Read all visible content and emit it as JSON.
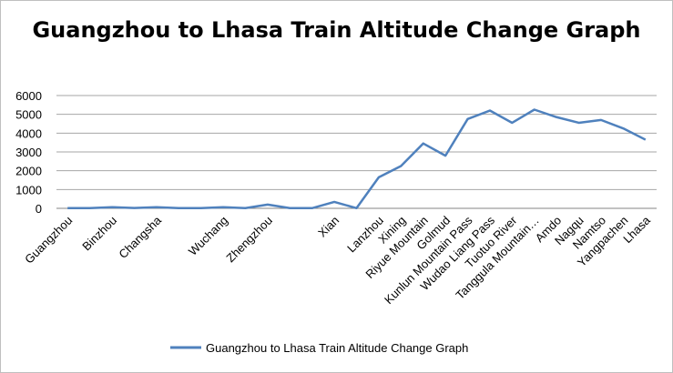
{
  "chart_data": {
    "type": "line",
    "title": "Guangzhou to Lhasa Train Altitude Change Graph",
    "xlabel": "",
    "ylabel": "",
    "ylim": [
      0,
      6000
    ],
    "yticks": [
      0,
      1000,
      2000,
      3000,
      4000,
      5000,
      6000
    ],
    "grid": true,
    "legend_position": "bottom",
    "line_color": "#4F81BD",
    "x": [
      "Guangzhou",
      "",
      "Binzhou",
      "",
      "Changsha",
      "",
      "",
      "Wuchang",
      "",
      "Zhengzhou",
      "",
      "",
      "Xian",
      "",
      "Lanzhou",
      "Xining",
      "Riyue Mountain",
      "Golmud",
      "Kunlun Mountain Pass",
      "Wudao Liang Pass",
      "Tuotuo River",
      "Tanggula Mountain…",
      "Amdo",
      "Nagqu",
      "Namtso",
      "Yangpachen",
      "Lhasa"
    ],
    "series": [
      {
        "name": "Guangzhou to Lhasa Train Altitude Change Graph",
        "values": [
          10,
          10,
          60,
          20,
          60,
          10,
          10,
          60,
          10,
          200,
          10,
          10,
          340,
          10,
          1650,
          2250,
          3450,
          2800,
          4750,
          5200,
          4550,
          5250,
          4850,
          4550,
          4700,
          4250,
          3650
        ]
      }
    ]
  }
}
